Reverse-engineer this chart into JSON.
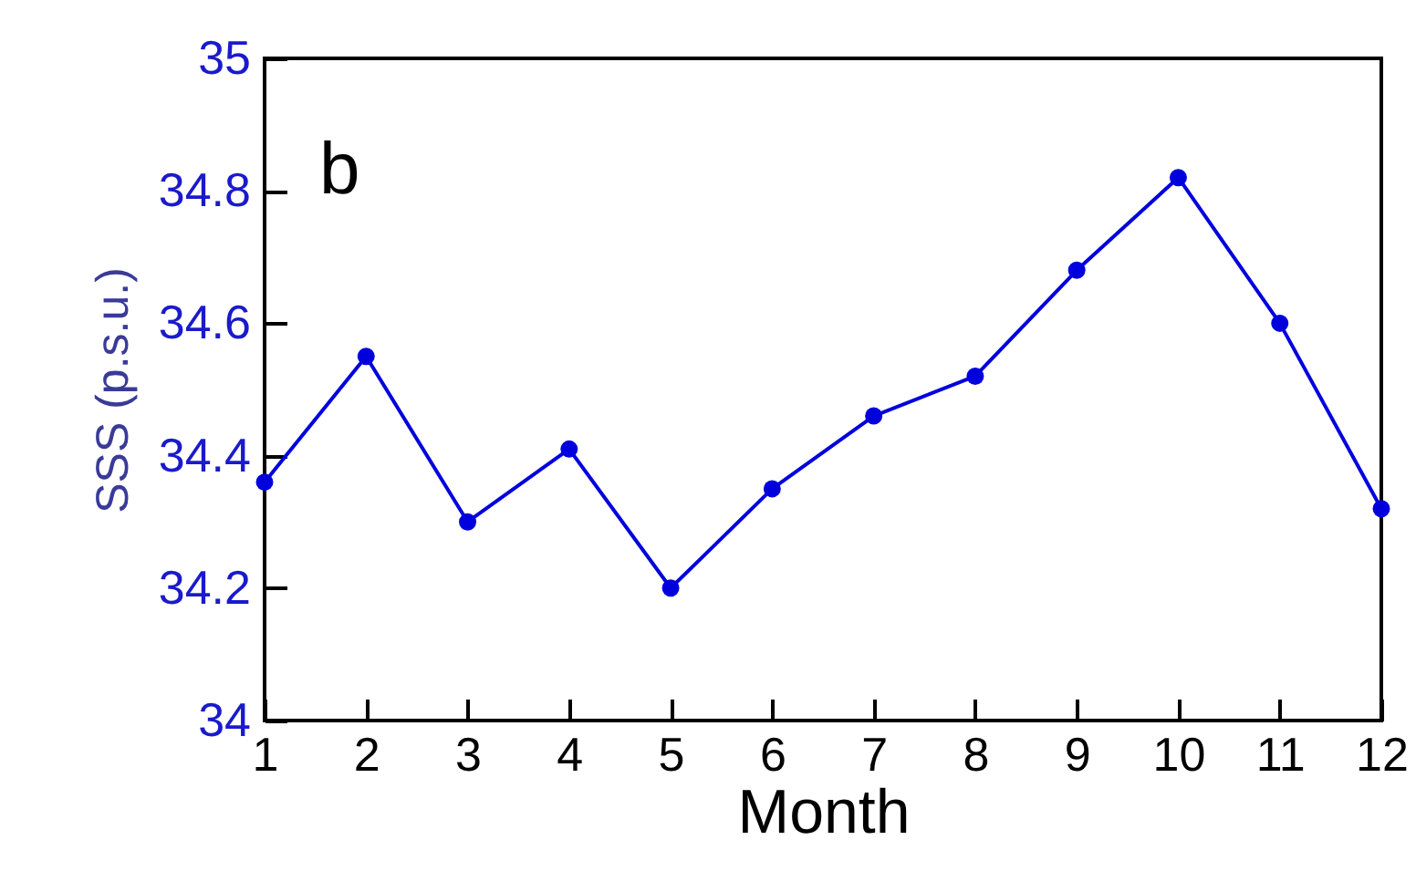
{
  "chart_data": {
    "type": "line",
    "xlabel": "Month",
    "ylabel": "SSS (p.s.u.)",
    "annotations": [
      "b"
    ],
    "x": [
      1,
      2,
      3,
      4,
      5,
      6,
      7,
      8,
      9,
      10,
      11,
      12
    ],
    "series": [
      {
        "color": "#0000dd",
        "values": [
          34.36,
          34.55,
          34.3,
          34.41,
          34.2,
          34.35,
          34.46,
          34.52,
          34.68,
          34.82,
          34.6,
          34.32
        ]
      }
    ],
    "xlim": [
      1,
      12
    ],
    "xticks": [
      1,
      2,
      3,
      4,
      5,
      6,
      7,
      8,
      9,
      10,
      11,
      12
    ],
    "ylim": [
      34,
      35
    ],
    "yticks": [
      34,
      34.2,
      34.4,
      34.6,
      34.8,
      35
    ],
    "grid": false,
    "marker": "circle",
    "line_style": "solid"
  }
}
